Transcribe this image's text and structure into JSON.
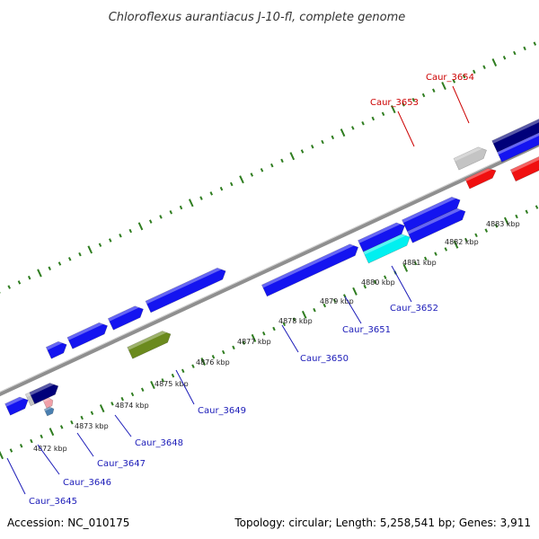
{
  "title": "Chloroflexus aurantiacus J-10-fl, complete genome",
  "footer": {
    "accession": "Accession: NC_010175",
    "summary": "Topology: circular; Length: 5,258,541 bp; Genes: 3,911"
  },
  "colors": {
    "backbone": "#8f8f8f",
    "tick": "#2f7d20",
    "label_blue": "#1a1ab8",
    "label_red": "#cc0000",
    "gene_blue": "#1414f0",
    "gene_navy": "#00007a",
    "gene_red": "#f01010",
    "gene_grey": "#c4c4c4",
    "gene_cyan": "#00f0f0",
    "gene_olive": "#6b8a1e",
    "gene_pink": "#f0a0a8",
    "gene_steel": "#4a7fb0"
  },
  "position_ticks": [
    {
      "label": "4872 kbp",
      "kbp": 4872
    },
    {
      "label": "4873 kbp",
      "kbp": 4873
    },
    {
      "label": "4874 kbp",
      "kbp": 4874
    },
    {
      "label": "4875 kbp",
      "kbp": 4875
    },
    {
      "label": "4876 kbp",
      "kbp": 4876
    },
    {
      "label": "4877 kbp",
      "kbp": 4877
    },
    {
      "label": "4878 kbp",
      "kbp": 4878
    },
    {
      "label": "4879 kbp",
      "kbp": 4879
    },
    {
      "label": "4880 kbp",
      "kbp": 4880
    },
    {
      "label": "4881 kbp",
      "kbp": 4881
    },
    {
      "label": "4882 kbp",
      "kbp": 4882
    },
    {
      "label": "4883 kbp",
      "kbp": 4883
    }
  ],
  "genes": [
    {
      "label": "Caur_3645",
      "color_key": "label_blue"
    },
    {
      "label": "Caur_3646",
      "color_key": "label_blue"
    },
    {
      "label": "Caur_3647",
      "color_key": "label_blue"
    },
    {
      "label": "Caur_3648",
      "color_key": "label_blue"
    },
    {
      "label": "Caur_3649",
      "color_key": "label_blue"
    },
    {
      "label": "Caur_3650",
      "color_key": "label_blue"
    },
    {
      "label": "Caur_3651",
      "color_key": "label_blue"
    },
    {
      "label": "Caur_3652",
      "color_key": "label_blue"
    },
    {
      "label": "Caur_3653",
      "color_key": "label_red"
    },
    {
      "label": "Caur_3654",
      "color_key": "label_red"
    }
  ]
}
